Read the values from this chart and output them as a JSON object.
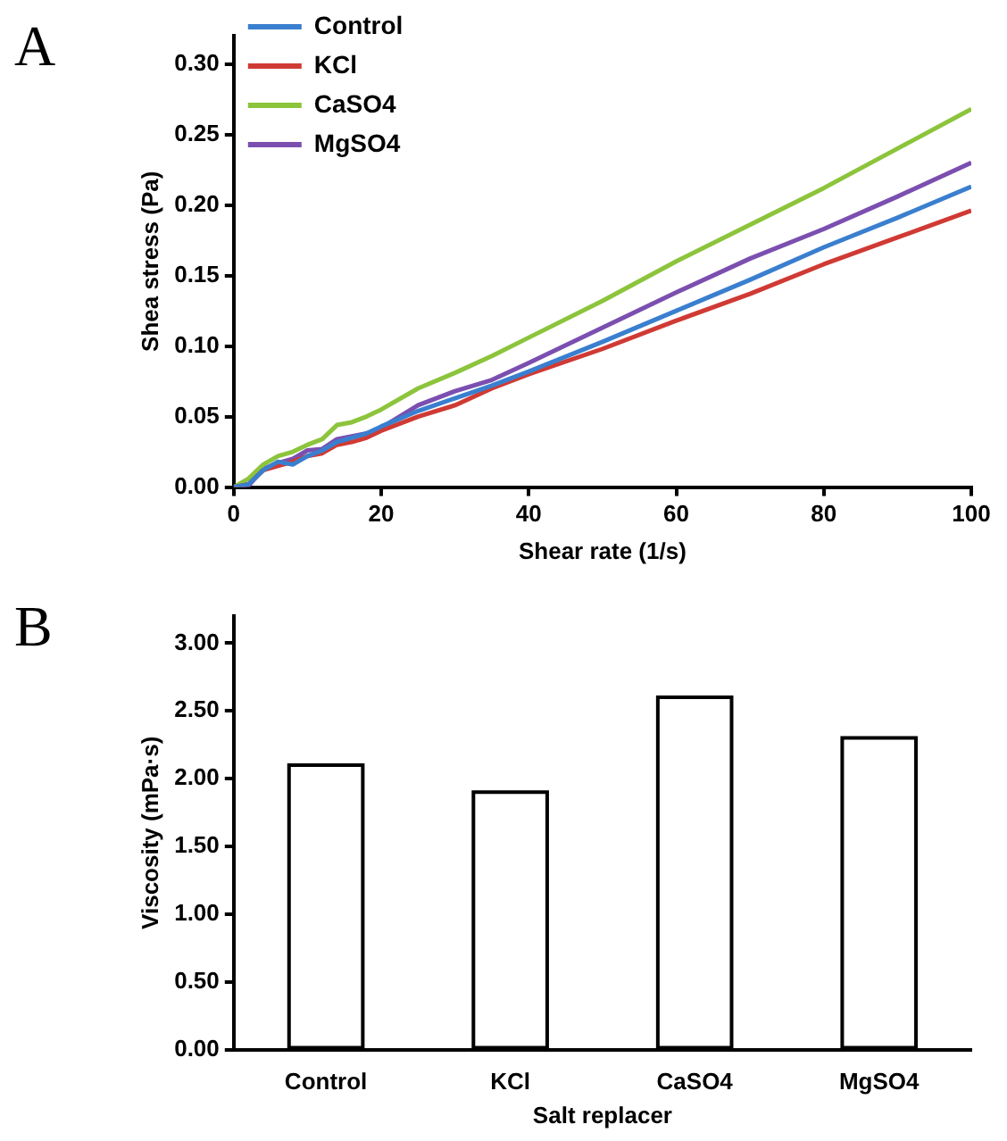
{
  "chart_data": [
    {
      "type": "line",
      "title": "A",
      "xlabel": "Shear rate (1/s)",
      "ylabel": "Shea stress (Pa)",
      "x": [
        0,
        2,
        4,
        6,
        8,
        10,
        12,
        14,
        16,
        18,
        20,
        25,
        30,
        35,
        40,
        50,
        60,
        70,
        80,
        90,
        100
      ],
      "series": [
        {
          "name": "Control",
          "color": "#3a7fcf",
          "values": [
            0,
            0.002,
            0.012,
            0.018,
            0.016,
            0.022,
            0.026,
            0.032,
            0.035,
            0.038,
            0.043,
            0.054,
            0.063,
            0.072,
            0.082,
            0.103,
            0.125,
            0.147,
            0.17,
            0.191,
            0.213
          ]
        },
        {
          "name": "KCl",
          "color": "#d03a34",
          "values": [
            0,
            0.002,
            0.012,
            0.015,
            0.018,
            0.022,
            0.024,
            0.03,
            0.032,
            0.035,
            0.04,
            0.05,
            0.058,
            0.07,
            0.08,
            0.098,
            0.118,
            0.137,
            0.158,
            0.177,
            0.196
          ]
        },
        {
          "name": "CaSO4",
          "color": "#8cc43c",
          "values": [
            0,
            0.006,
            0.016,
            0.022,
            0.025,
            0.03,
            0.034,
            0.044,
            0.046,
            0.05,
            0.055,
            0.07,
            0.081,
            0.093,
            0.106,
            0.132,
            0.16,
            0.186,
            0.212,
            0.24,
            0.268
          ]
        },
        {
          "name": "MgSO4",
          "color": "#7b4fb0",
          "values": [
            0,
            0.001,
            0.013,
            0.017,
            0.02,
            0.026,
            0.027,
            0.034,
            0.036,
            0.038,
            0.042,
            0.058,
            0.068,
            0.076,
            0.088,
            0.113,
            0.138,
            0.162,
            0.183,
            0.206,
            0.23
          ]
        }
      ],
      "xlim": [
        0,
        100
      ],
      "xticks": [
        0,
        20,
        40,
        60,
        80,
        100
      ],
      "ylim": [
        0,
        0.32
      ],
      "yticks": [
        {
          "value": 0,
          "label": "0.00"
        },
        {
          "value": 0.05,
          "label": "0.05"
        },
        {
          "value": 0.1,
          "label": "0.10"
        },
        {
          "value": 0.15,
          "label": "0.15"
        },
        {
          "value": 0.2,
          "label": "0.20"
        },
        {
          "value": 0.25,
          "label": "0.25"
        },
        {
          "value": 0.3,
          "label": "0.30"
        }
      ],
      "grid": false,
      "legend": "top left",
      "marker": "none",
      "line_style": "solid"
    },
    {
      "type": "bar",
      "title": "B",
      "xlabel": "Salt replacer",
      "ylabel": "Viscosity (mPa·s)",
      "categories": [
        "Control",
        "KCl",
        "CaSO4",
        "MgSO4"
      ],
      "values": [
        2.1,
        1.9,
        2.6,
        2.3
      ],
      "color": "#ffffff",
      "ylim": [
        0,
        3.2
      ],
      "yticks": [
        {
          "value": 0,
          "label": "0.00"
        },
        {
          "value": 0.5,
          "label": "0.50"
        },
        {
          "value": 1,
          "label": "1.00"
        },
        {
          "value": 1.5,
          "label": "1.50"
        },
        {
          "value": 2,
          "label": "2.00"
        },
        {
          "value": 2.5,
          "label": "2.50"
        },
        {
          "value": 3,
          "label": "3.00"
        }
      ],
      "grid": false,
      "legend": false
    }
  ]
}
